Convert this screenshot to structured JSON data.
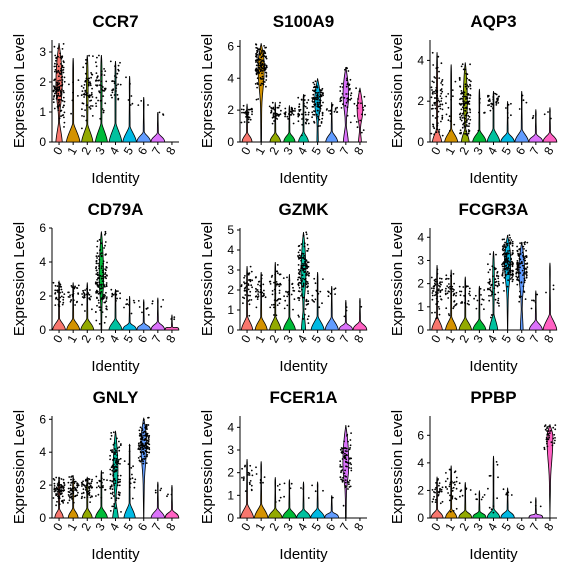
{
  "chart_data": {
    "type": "violin",
    "xlabel": "Identity",
    "ylabel": "Expression Level",
    "identities": [
      "0",
      "1",
      "2",
      "3",
      "4",
      "5",
      "6",
      "7",
      "8"
    ],
    "colors": [
      "#F8766D",
      "#D39200",
      "#93AA00",
      "#00BA38",
      "#00C19F",
      "#00B9E3",
      "#619CFF",
      "#DB72FB",
      "#FF61C3"
    ],
    "panels": [
      {
        "title": "CCR7",
        "ylim": [
          0,
          3.4
        ],
        "yticks": [
          0,
          1,
          2,
          3
        ],
        "groups": [
          {
            "zero": 0.45,
            "center": 1.9,
            "max": 3.3,
            "density": 1.0,
            "width": 0.45
          },
          {
            "zero": 0.96,
            "center": 1.8,
            "max": 2.8,
            "density": 0.05,
            "width": 0.06
          },
          {
            "zero": 0.8,
            "center": 1.7,
            "max": 2.9,
            "density": 0.45,
            "width": 0.12
          },
          {
            "zero": 0.85,
            "center": 1.8,
            "max": 2.9,
            "density": 0.35,
            "width": 0.1
          },
          {
            "zero": 0.9,
            "center": 1.8,
            "max": 2.7,
            "density": 0.2,
            "width": 0.08
          },
          {
            "zero": 0.96,
            "center": 1.5,
            "max": 2.2,
            "density": 0.04,
            "width": 0.04
          },
          {
            "zero": 0.98,
            "center": 1.0,
            "max": 1.5,
            "density": 0.02,
            "width": 0.04
          },
          {
            "zero": 0.98,
            "center": 0.9,
            "max": 1.0,
            "density": 0.02,
            "width": 0.04
          },
          {
            "zero": 1.0,
            "center": 0,
            "max": 0,
            "density": 0,
            "width": 0
          }
        ]
      },
      {
        "title": "S100A9",
        "ylim": [
          0,
          6.4
        ],
        "yticks": [
          0,
          2,
          4,
          6
        ],
        "groups": [
          {
            "zero": 0.7,
            "center": 1.8,
            "max": 2.4,
            "density": 0.25,
            "width": 0.05
          },
          {
            "zero": 0.05,
            "center": 4.8,
            "max": 6.2,
            "density": 1.0,
            "width": 0.45
          },
          {
            "zero": 0.75,
            "center": 1.8,
            "max": 2.5,
            "density": 0.25,
            "width": 0.05
          },
          {
            "zero": 0.8,
            "center": 1.8,
            "max": 2.3,
            "density": 0.2,
            "width": 0.05
          },
          {
            "zero": 0.7,
            "center": 1.9,
            "max": 3.0,
            "density": 0.3,
            "width": 0.06
          },
          {
            "zero": 0.1,
            "center": 2.6,
            "max": 4.0,
            "density": 0.7,
            "width": 0.42
          },
          {
            "zero": 0.85,
            "center": 2.0,
            "max": 2.5,
            "density": 0.1,
            "width": 0.04
          },
          {
            "zero": 0.35,
            "center": 3.0,
            "max": 4.7,
            "density": 0.3,
            "width": 0.4
          },
          {
            "zero": 0.2,
            "center": 2.0,
            "max": 3.4,
            "density": 0.15,
            "width": 0.4
          }
        ]
      },
      {
        "title": "AQP3",
        "ylim": [
          0,
          5.0
        ],
        "yticks": [
          0,
          2,
          4
        ],
        "groups": [
          {
            "zero": 0.65,
            "center": 1.9,
            "max": 4.4,
            "density": 0.6,
            "width": 0.08
          },
          {
            "zero": 0.92,
            "center": 1.9,
            "max": 3.8,
            "density": 0.1,
            "width": 0.05
          },
          {
            "zero": 0.55,
            "center": 1.9,
            "max": 3.9,
            "density": 0.9,
            "width": 0.3
          },
          {
            "zero": 0.95,
            "center": 1.7,
            "max": 2.6,
            "density": 0.05,
            "width": 0.05
          },
          {
            "zero": 0.9,
            "center": 1.9,
            "max": 2.5,
            "density": 0.25,
            "width": 0.06
          },
          {
            "zero": 0.96,
            "center": 1.4,
            "max": 2.0,
            "density": 0.04,
            "width": 0.04
          },
          {
            "zero": 0.97,
            "center": 1.8,
            "max": 2.5,
            "density": 0.03,
            "width": 0.04
          },
          {
            "zero": 0.98,
            "center": 1.2,
            "max": 1.6,
            "density": 0.02,
            "width": 0.04
          },
          {
            "zero": 0.98,
            "center": 1.4,
            "max": 1.7,
            "density": 0.02,
            "width": 0.04
          }
        ]
      },
      {
        "title": "CD79A",
        "ylim": [
          0,
          6.0
        ],
        "yticks": [
          0,
          2,
          4,
          6
        ],
        "groups": [
          {
            "zero": 0.9,
            "center": 2.0,
            "max": 2.9,
            "density": 0.25,
            "width": 0.06
          },
          {
            "zero": 0.92,
            "center": 2.0,
            "max": 2.8,
            "density": 0.2,
            "width": 0.05
          },
          {
            "zero": 0.92,
            "center": 2.0,
            "max": 2.8,
            "density": 0.2,
            "width": 0.05
          },
          {
            "zero": 0.05,
            "center": 3.0,
            "max": 5.8,
            "density": 1.0,
            "width": 0.32
          },
          {
            "zero": 0.93,
            "center": 2.0,
            "max": 2.4,
            "density": 0.1,
            "width": 0.05
          },
          {
            "zero": 0.96,
            "center": 1.3,
            "max": 2.0,
            "density": 0.06,
            "width": 0.04
          },
          {
            "zero": 0.97,
            "center": 1.3,
            "max": 1.8,
            "density": 0.05,
            "width": 0.04
          },
          {
            "zero": 0.97,
            "center": 1.5,
            "max": 1.9,
            "density": 0.03,
            "width": 0.04
          },
          {
            "zero": 0.98,
            "center": 0.6,
            "max": 0.9,
            "density": 0.02,
            "width": 0.04
          }
        ]
      },
      {
        "title": "GZMK",
        "ylim": [
          0,
          5.1
        ],
        "yticks": [
          0,
          1,
          2,
          3,
          4,
          5
        ],
        "groups": [
          {
            "zero": 0.8,
            "center": 2.0,
            "max": 3.2,
            "density": 0.3,
            "width": 0.06
          },
          {
            "zero": 0.85,
            "center": 1.9,
            "max": 2.9,
            "density": 0.25,
            "width": 0.05
          },
          {
            "zero": 0.8,
            "center": 2.0,
            "max": 3.4,
            "density": 0.3,
            "width": 0.06
          },
          {
            "zero": 0.85,
            "center": 1.9,
            "max": 2.8,
            "density": 0.15,
            "width": 0.05
          },
          {
            "zero": 0.3,
            "center": 2.8,
            "max": 4.9,
            "density": 1.0,
            "width": 0.35
          },
          {
            "zero": 0.92,
            "center": 2.0,
            "max": 2.9,
            "density": 0.1,
            "width": 0.05
          },
          {
            "zero": 0.94,
            "center": 1.9,
            "max": 2.2,
            "density": 0.05,
            "width": 0.04
          },
          {
            "zero": 0.96,
            "center": 1.1,
            "max": 1.5,
            "density": 0.02,
            "width": 0.04
          },
          {
            "zero": 0.98,
            "center": 1.3,
            "max": 1.6,
            "density": 0.01,
            "width": 0.04
          }
        ]
      },
      {
        "title": "FCGR3A",
        "ylim": [
          0,
          4.4
        ],
        "yticks": [
          0,
          1,
          2,
          3,
          4
        ],
        "groups": [
          {
            "zero": 0.75,
            "center": 1.7,
            "max": 2.8,
            "density": 0.4,
            "width": 0.06
          },
          {
            "zero": 0.8,
            "center": 1.7,
            "max": 2.6,
            "density": 0.3,
            "width": 0.06
          },
          {
            "zero": 0.88,
            "center": 1.6,
            "max": 2.3,
            "density": 0.15,
            "width": 0.05
          },
          {
            "zero": 0.92,
            "center": 1.4,
            "max": 1.9,
            "density": 0.08,
            "width": 0.05
          },
          {
            "zero": 0.6,
            "center": 2.0,
            "max": 3.4,
            "density": 0.4,
            "width": 0.12
          },
          {
            "zero": 0.02,
            "center": 3.0,
            "max": 4.1,
            "density": 1.0,
            "width": 0.45
          },
          {
            "zero": 0.2,
            "center": 2.6,
            "max": 3.8,
            "density": 0.8,
            "width": 0.4
          },
          {
            "zero": 0.93,
            "center": 1.3,
            "max": 1.7,
            "density": 0.04,
            "width": 0.04
          },
          {
            "zero": 0.97,
            "center": 2.0,
            "max": 2.9,
            "density": 0.02,
            "width": 0.04
          }
        ]
      },
      {
        "title": "GNLY",
        "ylim": [
          0,
          6.2
        ],
        "yticks": [
          0,
          2,
          4,
          6
        ],
        "groups": [
          {
            "zero": 0.6,
            "center": 1.7,
            "max": 2.5,
            "density": 0.6,
            "width": 0.1
          },
          {
            "zero": 0.7,
            "center": 1.8,
            "max": 2.6,
            "density": 0.4,
            "width": 0.08
          },
          {
            "zero": 0.7,
            "center": 1.8,
            "max": 2.5,
            "density": 0.4,
            "width": 0.08
          },
          {
            "zero": 0.85,
            "center": 2.0,
            "max": 2.9,
            "density": 0.15,
            "width": 0.06
          },
          {
            "zero": 0.4,
            "center": 2.8,
            "max": 5.3,
            "density": 0.8,
            "width": 0.35
          },
          {
            "zero": 0.8,
            "center": 2.6,
            "max": 4.5,
            "density": 0.12,
            "width": 0.05
          },
          {
            "zero": 0.02,
            "center": 4.6,
            "max": 6.1,
            "density": 1.0,
            "width": 0.4
          },
          {
            "zero": 0.96,
            "center": 1.8,
            "max": 2.2,
            "density": 0.03,
            "width": 0.04
          },
          {
            "zero": 0.98,
            "center": 1.5,
            "max": 2.0,
            "density": 0.02,
            "width": 0.04
          }
        ]
      },
      {
        "title": "FCER1A",
        "ylim": [
          0,
          4.5
        ],
        "yticks": [
          0,
          1,
          2,
          3,
          4
        ],
        "groups": [
          {
            "zero": 0.93,
            "center": 1.8,
            "max": 2.6,
            "density": 0.15,
            "width": 0.05
          },
          {
            "zero": 0.96,
            "center": 1.8,
            "max": 2.5,
            "density": 0.05,
            "width": 0.04
          },
          {
            "zero": 0.97,
            "center": 1.3,
            "max": 1.8,
            "density": 0.04,
            "width": 0.04
          },
          {
            "zero": 0.98,
            "center": 1.3,
            "max": 1.7,
            "density": 0.03,
            "width": 0.04
          },
          {
            "zero": 0.98,
            "center": 1.2,
            "max": 1.6,
            "density": 0.02,
            "width": 0.04
          },
          {
            "zero": 0.98,
            "center": 1.3,
            "max": 1.6,
            "density": 0.02,
            "width": 0.04
          },
          {
            "zero": 0.99,
            "center": 0.9,
            "max": 1.0,
            "density": 0.01,
            "width": 0.04
          },
          {
            "zero": 0.05,
            "center": 2.4,
            "max": 4.1,
            "density": 0.6,
            "width": 0.42
          },
          {
            "zero": 1.0,
            "center": 0,
            "max": 0,
            "density": 0,
            "width": 0
          }
        ]
      },
      {
        "title": "PPBP",
        "ylim": [
          0,
          7.4
        ],
        "yticks": [
          0,
          2,
          4,
          6
        ],
        "groups": [
          {
            "zero": 0.85,
            "center": 1.9,
            "max": 3.0,
            "density": 0.2,
            "width": 0.06
          },
          {
            "zero": 0.8,
            "center": 2.0,
            "max": 3.8,
            "density": 0.25,
            "width": 0.06
          },
          {
            "zero": 0.92,
            "center": 1.7,
            "max": 2.6,
            "density": 0.06,
            "width": 0.05
          },
          {
            "zero": 0.95,
            "center": 1.5,
            "max": 2.0,
            "density": 0.04,
            "width": 0.04
          },
          {
            "zero": 0.9,
            "center": 2.0,
            "max": 4.5,
            "density": 0.08,
            "width": 0.05
          },
          {
            "zero": 0.96,
            "center": 1.8,
            "max": 2.2,
            "density": 0.04,
            "width": 0.04
          },
          {
            "zero": 1.0,
            "center": 0,
            "max": 0,
            "density": 0,
            "width": 0
          },
          {
            "zero": 0.98,
            "center": 1.0,
            "max": 1.5,
            "density": 0.02,
            "width": 0.04
          },
          {
            "zero": 0.0,
            "center": 5.9,
            "max": 6.8,
            "density": 0.25,
            "width": 0.42
          }
        ]
      }
    ]
  }
}
